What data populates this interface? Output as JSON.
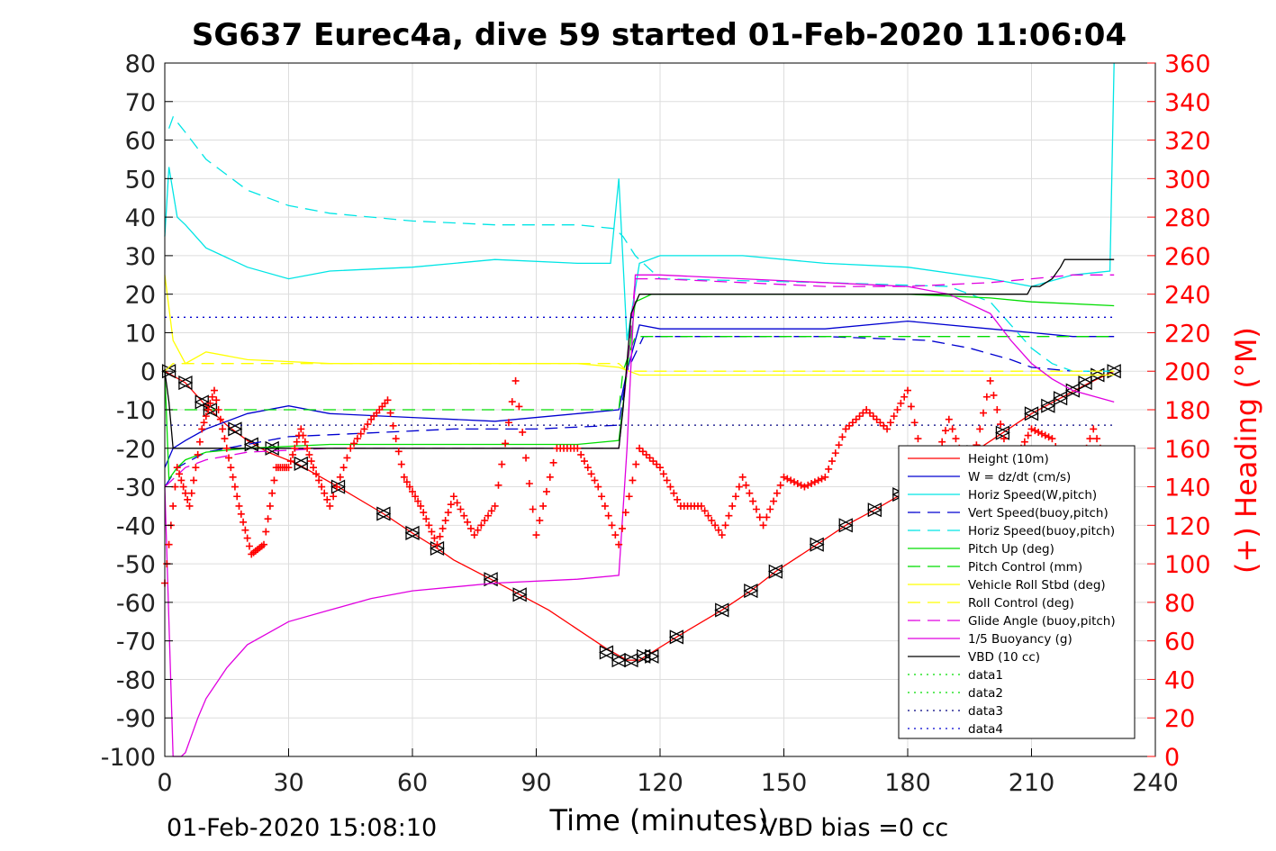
{
  "chart_data": {
    "type": "line",
    "title": "SG637 Eurec4a, dive 59 started 01-Feb-2020 11:06:04",
    "xlabel": "Time (minutes)",
    "ylabel_right": "(+) Heading (°M)",
    "xlim": [
      0,
      240
    ],
    "ylim_left": [
      -100,
      80
    ],
    "ylim_right": [
      0,
      360
    ],
    "xticks": [
      "0",
      "30",
      "60",
      "90",
      "120",
      "150",
      "180",
      "210",
      "240"
    ],
    "yticks_left": [
      "80",
      "70",
      "60",
      "50",
      "40",
      "30",
      "20",
      "10",
      "0",
      "-10",
      "-20",
      "-30",
      "-40",
      "-50",
      "-60",
      "-70",
      "-80",
      "-90",
      "-100"
    ],
    "yticks_right": [
      "360",
      "340",
      "320",
      "300",
      "280",
      "260",
      "240",
      "220",
      "200",
      "180",
      "160",
      "140",
      "120",
      "100",
      "80",
      "60",
      "40",
      "20",
      "0"
    ],
    "grid": true,
    "legend_position": "lower-right",
    "footer_left": "01-Feb-2020 15:08:10",
    "footer_right": "VBD bias =0 cc",
    "colors": {
      "red": "#ff0000",
      "blue": "#0000d0",
      "cyan": "#00e5e5",
      "green": "#00dd00",
      "yellow": "#ffff00",
      "magenta": "#e000e0",
      "black": "#000000"
    },
    "series": [
      {
        "name": "Height (10m)",
        "color": "#ff0000",
        "style": "solid",
        "x": [
          0,
          5,
          10,
          15,
          20,
          25,
          32,
          42,
          53,
          60,
          66,
          70,
          79,
          86,
          93,
          100,
          107,
          112,
          115,
          118,
          124,
          135,
          142,
          148,
          158,
          165,
          172,
          180,
          188,
          196,
          203,
          210,
          217,
          224,
          230
        ],
        "y": [
          0,
          -3,
          -9,
          -14,
          -18,
          -21,
          -24,
          -30,
          -37,
          -42,
          -46,
          -49,
          -54,
          -58,
          -62,
          -67,
          -72,
          -75,
          -75,
          -73,
          -69,
          -62,
          -57,
          -52,
          -45,
          -40,
          -36,
          -31,
          -26,
          -21,
          -16,
          -11,
          -7,
          -3,
          0
        ]
      },
      {
        "name": "Height markers",
        "color": "#000000",
        "style": "markers",
        "x": [
          1,
          5,
          9,
          11,
          17,
          21,
          26,
          33,
          42,
          53,
          60,
          66,
          79,
          86,
          107,
          110,
          113,
          116,
          118,
          124,
          135,
          142,
          148,
          158,
          165,
          172,
          178,
          196,
          203,
          210,
          214,
          217,
          220,
          223,
          226,
          230
        ],
        "y": [
          0,
          -3,
          -8,
          -10,
          -15,
          -19,
          -20,
          -24,
          -30,
          -37,
          -42,
          -46,
          -54,
          -58,
          -73,
          -75,
          -75,
          -74,
          -74,
          -69,
          -62,
          -57,
          -52,
          -45,
          -40,
          -36,
          -32,
          -21,
          -16,
          -11,
          -9,
          -7,
          -5,
          -3,
          -1,
          0
        ]
      },
      {
        "name": "W = dz/dt (cm/s)",
        "color": "#0000d0",
        "style": "solid",
        "x": [
          0,
          2,
          5,
          10,
          20,
          30,
          40,
          60,
          80,
          100,
          110,
          112,
          115,
          120,
          140,
          160,
          180,
          200,
          210,
          220,
          230
        ],
        "y": [
          -25,
          -20,
          -18,
          -15,
          -11,
          -9,
          -11,
          -12,
          -13,
          -11,
          -10,
          0,
          12,
          11,
          11,
          11,
          13,
          11,
          10,
          9,
          9
        ]
      },
      {
        "name": "Horiz Speed(W,pitch)",
        "color": "#00e5e5",
        "style": "solid",
        "x": [
          0,
          1,
          3,
          5,
          10,
          20,
          30,
          40,
          60,
          80,
          100,
          108,
          110,
          112,
          115,
          120,
          140,
          160,
          180,
          200,
          210,
          220,
          229,
          230
        ],
        "y": [
          35,
          53,
          40,
          38,
          32,
          27,
          24,
          26,
          27,
          29,
          28,
          28,
          50,
          8,
          28,
          30,
          30,
          28,
          27,
          24,
          22,
          25,
          26,
          80
        ]
      },
      {
        "name": "Vert Speed(buoy,pitch)",
        "color": "#0000d0",
        "style": "dash",
        "x": [
          0,
          3,
          10,
          20,
          30,
          50,
          70,
          90,
          110,
          112,
          116,
          130,
          160,
          185,
          195,
          205,
          210,
          220,
          230
        ],
        "y": [
          -30,
          -25,
          -21,
          -19,
          -17,
          -16,
          -15,
          -15,
          -14,
          0,
          9,
          9,
          9,
          8,
          6,
          3,
          1,
          0,
          0
        ]
      },
      {
        "name": "Horiz Speed(buoy,pitch)",
        "color": "#00e5e5",
        "style": "dash",
        "x": [
          1,
          2,
          5,
          10,
          20,
          30,
          40,
          60,
          80,
          100,
          109,
          111,
          114,
          120,
          160,
          190,
          200,
          205,
          210,
          215,
          220,
          230
        ],
        "y": [
          63,
          66,
          62,
          55,
          47,
          43,
          41,
          39,
          38,
          38,
          37,
          35,
          30,
          24,
          23,
          22,
          18,
          12,
          6,
          2,
          0,
          0
        ]
      },
      {
        "name": "Pitch Up (deg)",
        "color": "#00dd00",
        "style": "solid",
        "x": [
          0,
          1,
          3,
          5,
          10,
          20,
          40,
          70,
          100,
          110,
          112,
          114,
          118,
          140,
          180,
          200,
          210,
          230
        ],
        "y": [
          0,
          -28,
          -25,
          -23,
          -21,
          -20,
          -19,
          -19,
          -19,
          -18,
          0,
          18,
          20,
          20,
          20,
          19,
          18,
          17
        ]
      },
      {
        "name": "Pitch Control (mm)",
        "color": "#00dd00",
        "style": "dash",
        "x": [
          0,
          3,
          30,
          110,
          111,
          114,
          200,
          230
        ],
        "y": [
          -10,
          -10,
          -10,
          -10,
          0,
          9,
          9,
          9
        ]
      },
      {
        "name": "Vehicle Roll Stbd (deg)",
        "color": "#ffff00",
        "style": "solid",
        "x": [
          0,
          2,
          5,
          10,
          20,
          40,
          60,
          80,
          100,
          110,
          115,
          130,
          150,
          170,
          190,
          210,
          230
        ],
        "y": [
          25,
          8,
          2,
          5,
          3,
          2,
          2,
          2,
          2,
          1,
          -1,
          -1,
          -1,
          -1,
          -1,
          -1,
          -1
        ]
      },
      {
        "name": "Roll Control (deg)",
        "color": "#ffff00",
        "style": "dash",
        "x": [
          0,
          2,
          10,
          60,
          110,
          112,
          120,
          180,
          230
        ],
        "y": [
          0,
          2,
          2,
          2,
          2,
          0,
          0,
          0,
          0
        ]
      },
      {
        "name": "Glide Angle (buoy,pitch)",
        "color": "#e000e0",
        "style": "dash",
        "x": [
          0,
          2,
          5,
          10,
          20,
          40,
          60,
          80,
          100,
          110,
          112,
          114,
          120,
          140,
          160,
          180,
          200,
          210,
          220,
          230
        ],
        "y": [
          -30,
          -28,
          -25,
          -23,
          -21,
          -20,
          -20,
          -20,
          -20,
          -20,
          0,
          24,
          24,
          23,
          22,
          22,
          23,
          24,
          25,
          25
        ]
      },
      {
        "name": "1/5 Buoyancy (g)",
        "color": "#e000e0",
        "style": "solid",
        "x": [
          0,
          2,
          3,
          4,
          5,
          8,
          10,
          15,
          20,
          30,
          40,
          50,
          60,
          80,
          100,
          110,
          112,
          114,
          120,
          140,
          160,
          180,
          190,
          200,
          205,
          210,
          215,
          220,
          230
        ],
        "y": [
          -30,
          -100,
          -100,
          -100,
          -99,
          -90,
          -85,
          -77,
          -71,
          -65,
          -62,
          -59,
          -57,
          -55,
          -54,
          -53,
          -20,
          25,
          25,
          24,
          23,
          22,
          20,
          15,
          8,
          2,
          -2,
          -5,
          -8
        ]
      },
      {
        "name": "VBD (10 cc)",
        "color": "#000000",
        "style": "solid",
        "x": [
          0,
          1,
          2,
          110,
          111,
          113,
          115,
          140,
          180,
          200,
          209,
          210,
          212,
          215,
          217,
          218,
          225,
          230
        ],
        "y": [
          0,
          -8,
          -20,
          -20,
          -10,
          15,
          20,
          20,
          20,
          20,
          20,
          22,
          22,
          24,
          27,
          29,
          29,
          29
        ]
      },
      {
        "name": "data1",
        "color": "#00dd00",
        "style": "dot",
        "x": [],
        "y": []
      },
      {
        "name": "data2",
        "color": "#00dd00",
        "style": "dot",
        "x": [],
        "y": []
      },
      {
        "name": "data3",
        "color": "#000080",
        "style": "dot",
        "x": [
          0,
          230
        ],
        "y": [
          -14,
          -14
        ]
      },
      {
        "name": "data4",
        "color": "#0000d0",
        "style": "dot",
        "x": [
          0,
          230
        ],
        "y": [
          14,
          14
        ]
      }
    ],
    "heading": {
      "name": "Heading",
      "color": "#ff0000",
      "style": "plus-markers",
      "axis": "right",
      "x": [
        0,
        3,
        6,
        9,
        12,
        15,
        18,
        21,
        24,
        27,
        30,
        33,
        36,
        40,
        45,
        50,
        54,
        58,
        62,
        66,
        70,
        75,
        80,
        85,
        90,
        95,
        100,
        105,
        110,
        115,
        120,
        125,
        130,
        135,
        140,
        145,
        150,
        155,
        160,
        165,
        170,
        175,
        180,
        185,
        190,
        195,
        200,
        205,
        210,
        215,
        220,
        225,
        230
      ],
      "y": [
        90,
        150,
        130,
        170,
        190,
        160,
        130,
        105,
        110,
        150,
        150,
        170,
        150,
        130,
        160,
        175,
        185,
        145,
        130,
        110,
        135,
        115,
        130,
        195,
        115,
        160,
        160,
        140,
        110,
        160,
        150,
        130,
        130,
        115,
        145,
        120,
        145,
        140,
        145,
        170,
        180,
        170,
        190,
        140,
        175,
        145,
        195,
        150,
        170,
        165,
        140,
        170,
        140
      ]
    }
  },
  "legend_entries": [
    "Height (10m)",
    "W = dz/dt (cm/s)",
    "Horiz Speed(W,pitch)",
    "Vert Speed(buoy,pitch)",
    "Horiz Speed(buoy,pitch)",
    "Pitch Up (deg)",
    "Pitch Control (mm)",
    "Vehicle Roll Stbd (deg)",
    "Roll Control (deg)",
    "Glide Angle (buoy,pitch)",
    "1/5 Buoyancy (g)",
    "VBD (10 cc)",
    "data1",
    "data2",
    "data3",
    "data4"
  ]
}
